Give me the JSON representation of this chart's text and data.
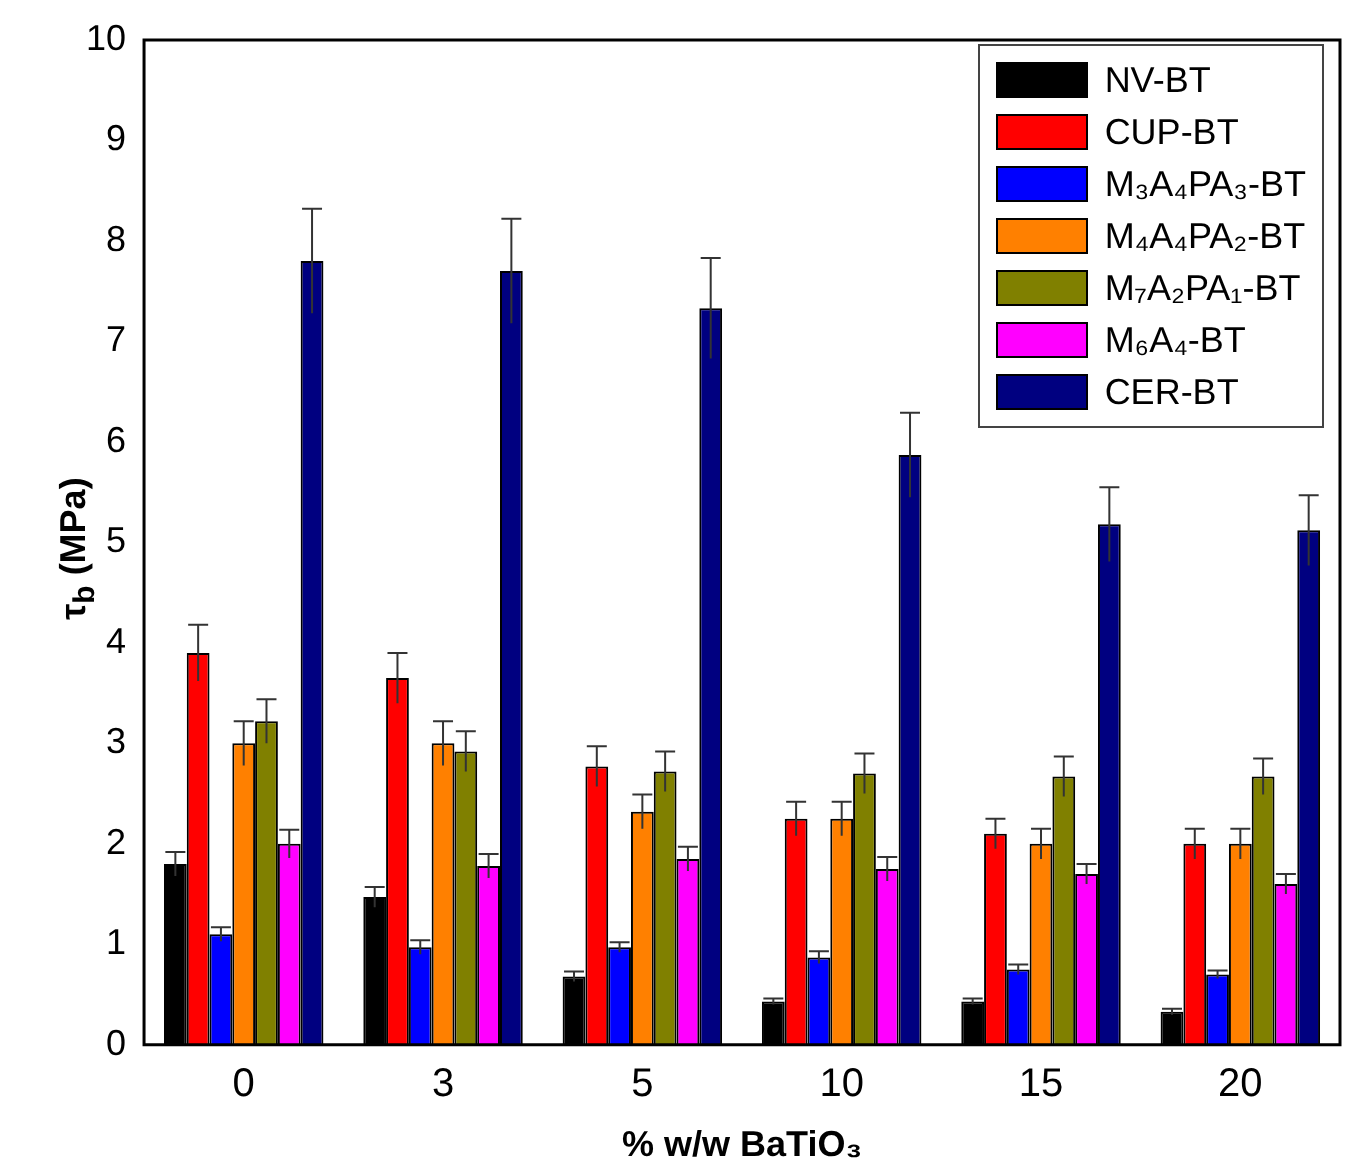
{
  "chart_data": {
    "type": "bar",
    "xlabel": "% w/w BaTiO₃",
    "ylabel": "τ$_{b}$ (MPa)",
    "categories": [
      "0",
      "3",
      "5",
      "10",
      "15",
      "20"
    ],
    "ylim": [
      0,
      10
    ],
    "yticks": [
      0,
      1,
      2,
      3,
      4,
      5,
      6,
      7,
      8,
      9,
      10
    ],
    "legend": "top right",
    "series": [
      {
        "name": "NV-BT",
        "color": "#000000",
        "values": [
          1.8,
          1.47,
          0.68,
          0.43,
          0.43,
          0.33
        ],
        "errors": [
          0.12,
          0.1,
          0.05,
          0.03,
          0.03,
          0.03
        ]
      },
      {
        "name": "CUP-BT",
        "color": "#ff0000",
        "values": [
          3.9,
          3.65,
          2.77,
          2.25,
          2.1,
          2.0
        ],
        "errors": [
          0.28,
          0.25,
          0.2,
          0.17,
          0.15,
          0.15
        ]
      },
      {
        "name": "M₃A₄PA₃-BT",
        "color": "#0000ff",
        "values": [
          1.1,
          0.97,
          0.97,
          0.87,
          0.75,
          0.7
        ],
        "errors": [
          0.07,
          0.07,
          0.05,
          0.06,
          0.05,
          0.04
        ]
      },
      {
        "name": "M₄A₄PA₂-BT",
        "color": "#ff8000",
        "values": [
          3.0,
          3.0,
          2.32,
          2.25,
          2.0,
          2.0
        ],
        "errors": [
          0.22,
          0.22,
          0.17,
          0.17,
          0.15,
          0.15
        ]
      },
      {
        "name": "M₇A₂PA₁-BT",
        "color": "#808000",
        "values": [
          3.22,
          2.92,
          2.72,
          2.7,
          2.67,
          2.67
        ],
        "errors": [
          0.22,
          0.2,
          0.2,
          0.2,
          0.2,
          0.18
        ]
      },
      {
        "name": "M₆A₄-BT",
        "color": "#ff00ff",
        "values": [
          2.0,
          1.78,
          1.85,
          1.75,
          1.7,
          1.6
        ],
        "errors": [
          0.14,
          0.12,
          0.12,
          0.12,
          0.1,
          0.1
        ]
      },
      {
        "name": "CER-BT",
        "color": "#000080",
        "values": [
          7.8,
          7.7,
          7.33,
          5.87,
          5.18,
          5.12
        ],
        "errors": [
          0.52,
          0.52,
          0.5,
          0.42,
          0.37,
          0.35
        ]
      }
    ]
  }
}
